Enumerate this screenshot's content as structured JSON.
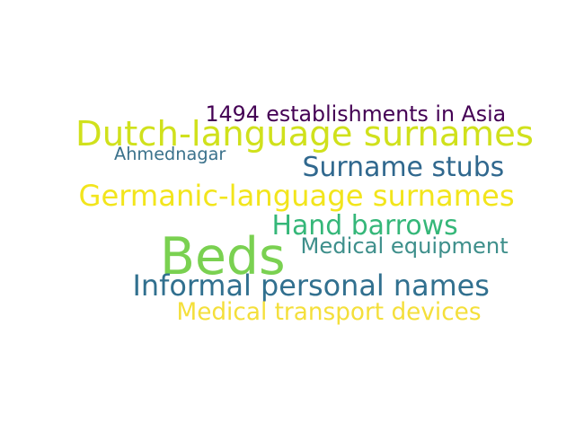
{
  "words": [
    {
      "text": "1494 establishments in Asia",
      "color": "#440154",
      "weight": 0.37
    },
    {
      "text": "Dutch-language surnames",
      "color": "#d0e11c",
      "weight": 0.72
    },
    {
      "text": "Ahmednagar",
      "color": "#3b728c",
      "weight": 0.33
    },
    {
      "text": "Surname stubs",
      "color": "#30688e",
      "weight": 0.53
    },
    {
      "text": "Germanic-language surnames",
      "color": "#f2e51c",
      "weight": 0.6
    },
    {
      "text": "Hand barrows",
      "color": "#35b779",
      "weight": 0.56
    },
    {
      "text": "Beds",
      "color": "#7ad151",
      "weight": 1.0
    },
    {
      "text": "Medical equipment",
      "color": "#3e8f8b",
      "weight": 0.4
    },
    {
      "text": "Informal personal names",
      "color": "#31708f",
      "weight": 0.55
    },
    {
      "text": "Medical transport devices",
      "color": "#f4df3a",
      "weight": 0.4
    }
  ]
}
